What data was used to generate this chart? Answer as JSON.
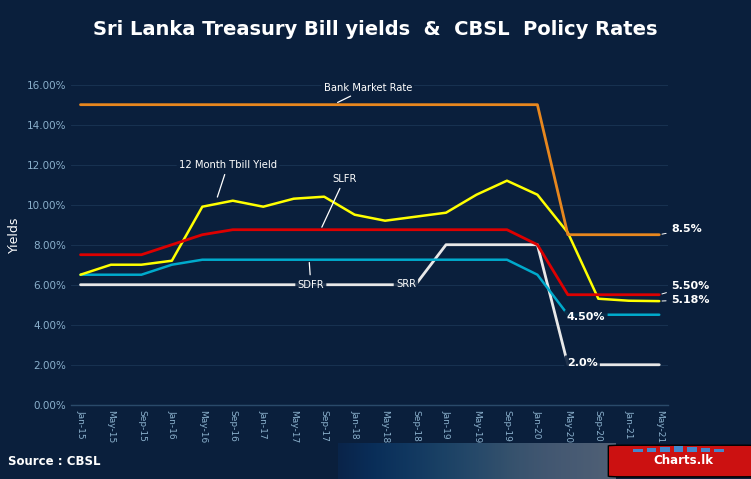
{
  "title": "Sri Lanka Treasury Bill yields  &  CBSL  Policy Rates",
  "bg_color": "#0a1f3c",
  "plot_bg": "#0a1f3c",
  "title_bg": "#0d2755",
  "footer_bg": "#0d2755",
  "ylabel": "Yields",
  "source": "Source : CBSL",
  "ylim": [
    0.0,
    0.17
  ],
  "yticks": [
    0.0,
    0.02,
    0.04,
    0.06,
    0.08,
    0.1,
    0.12,
    0.14,
    0.16
  ],
  "ytick_labels": [
    "0.00%",
    "2.00%",
    "4.00%",
    "6.00%",
    "8.00%",
    "10.00%",
    "12.00%",
    "14.00%",
    "16.00%"
  ],
  "colors": {
    "orange": "#e8871e",
    "yellow": "#ffff00",
    "red": "#dd0000",
    "cyan": "#00aacc",
    "white": "#e8e8e8"
  },
  "xaxis_dates": [
    "Jan-15",
    "May-15",
    "Sep-15",
    "Jan-16",
    "May-16",
    "Sep-16",
    "Jan-17",
    "May-17",
    "Sep-17",
    "Jan-18",
    "May-18",
    "Sep-18",
    "Jan-19",
    "May-19",
    "Sep-19",
    "Jan-20",
    "May-20",
    "Sep-20",
    "Jan-21",
    "May-21"
  ],
  "bank_market_rate": [
    0.15,
    0.15,
    0.15,
    0.15,
    0.15,
    0.15,
    0.15,
    0.15,
    0.15,
    0.15,
    0.15,
    0.15,
    0.15,
    0.15,
    0.15,
    0.15,
    0.085,
    0.085,
    0.085,
    0.085
  ],
  "tbill_12m": [
    0.065,
    0.07,
    0.07,
    0.072,
    0.099,
    0.102,
    0.099,
    0.103,
    0.104,
    0.095,
    0.092,
    0.094,
    0.096,
    0.105,
    0.112,
    0.105,
    0.086,
    0.053,
    0.052,
    0.0518
  ],
  "slfr": [
    0.075,
    0.075,
    0.075,
    0.08,
    0.085,
    0.0875,
    0.0875,
    0.0875,
    0.0875,
    0.0875,
    0.0875,
    0.0875,
    0.0875,
    0.0875,
    0.0875,
    0.08,
    0.055,
    0.055,
    0.055,
    0.055
  ],
  "sdfr": [
    0.065,
    0.065,
    0.065,
    0.07,
    0.0725,
    0.0725,
    0.0725,
    0.0725,
    0.0725,
    0.0725,
    0.0725,
    0.0725,
    0.0725,
    0.0725,
    0.0725,
    0.065,
    0.045,
    0.045,
    0.045,
    0.045
  ],
  "srr": [
    0.06,
    0.06,
    0.06,
    0.06,
    0.06,
    0.06,
    0.06,
    0.06,
    0.06,
    0.06,
    0.06,
    0.06,
    0.08,
    0.08,
    0.08,
    0.08,
    0.02,
    0.02,
    0.02,
    0.02
  ]
}
